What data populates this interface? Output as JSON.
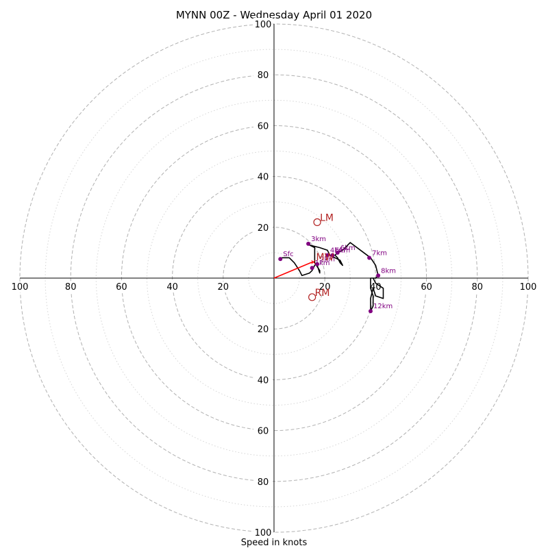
{
  "chart_data": {
    "type": "hodograph",
    "title": "MYNN 00Z - Wednesday April 01 2020",
    "xlabel": "Speed in knots",
    "xlim": [
      -100,
      100
    ],
    "ylim": [
      -100,
      100
    ],
    "ring_major": [
      20,
      40,
      60,
      80,
      100
    ],
    "ring_minor": [
      10,
      30,
      50,
      70,
      90
    ],
    "tick_labels": {
      "x_left": [
        "100",
        "80",
        "60",
        "40",
        "20"
      ],
      "x_right": [
        "20",
        "40",
        "60",
        "80",
        "100"
      ],
      "y_up": [
        "20",
        "40",
        "60",
        "80",
        "100"
      ],
      "y_down": [
        "20",
        "40",
        "60",
        "80",
        "100"
      ]
    },
    "hodograph_trace": [
      [
        3,
        8
      ],
      [
        6,
        8
      ],
      [
        8,
        6
      ],
      [
        10,
        3
      ],
      [
        11,
        1
      ],
      [
        14,
        2
      ],
      [
        15,
        3
      ],
      [
        16,
        5
      ],
      [
        17,
        6
      ],
      [
        17,
        5
      ],
      [
        18,
        2
      ],
      [
        18,
        3
      ],
      [
        16,
        6
      ],
      [
        16,
        9
      ],
      [
        16,
        12
      ],
      [
        14,
        13
      ],
      [
        18,
        12
      ],
      [
        21,
        11
      ],
      [
        22,
        9
      ],
      [
        24,
        8
      ],
      [
        26,
        7
      ],
      [
        27,
        5
      ],
      [
        26,
        6
      ],
      [
        25,
        8
      ],
      [
        24,
        9
      ],
      [
        25,
        10
      ],
      [
        27,
        11
      ],
      [
        30,
        14
      ],
      [
        34,
        11
      ],
      [
        38,
        8
      ],
      [
        40,
        5
      ],
      [
        41,
        1
      ],
      [
        40,
        0
      ],
      [
        38,
        0
      ],
      [
        38,
        -4
      ],
      [
        39,
        -7
      ],
      [
        39,
        -11
      ],
      [
        38,
        -13
      ],
      [
        38,
        -8
      ],
      [
        39,
        -4
      ],
      [
        40,
        -7
      ],
      [
        43,
        -8
      ],
      [
        43,
        -4
      ],
      [
        40,
        -2
      ],
      [
        39,
        0
      ]
    ],
    "height_markers": [
      {
        "label": "Sfc",
        "u": 2.5,
        "v": 7.5
      },
      {
        "label": "1km",
        "u": 15,
        "v": 4
      },
      {
        "label": "2km",
        "u": 17,
        "v": 5.5
      },
      {
        "label": "3km",
        "u": 13.5,
        "v": 13.5
      },
      {
        "label": "4km",
        "u": 21,
        "v": 9
      },
      {
        "label": "5km",
        "u": 23,
        "v": 9
      },
      {
        "label": "6km",
        "u": 25,
        "v": 10
      },
      {
        "label": "7km",
        "u": 37.5,
        "v": 8
      },
      {
        "label": "8km",
        "u": 41,
        "v": 1
      },
      {
        "label": "12km",
        "u": 38,
        "v": -13
      }
    ],
    "storm_motion": [
      {
        "label": "LM",
        "u": 17,
        "v": 22
      },
      {
        "label": "RM",
        "u": 15,
        "v": -7.5
      },
      {
        "label": "MW",
        "u": 15.5,
        "v": 6.5
      }
    ],
    "mean_wind_vector": {
      "u": 15.5,
      "v": 6.5
    },
    "colors": {
      "trace": "#000000",
      "height_marker": "#800080",
      "storm_motion": "#b22222",
      "mean_wind_vector": "#ff0000",
      "ring": "#b0b0b0",
      "axis": "#000000"
    },
    "grid": true
  }
}
